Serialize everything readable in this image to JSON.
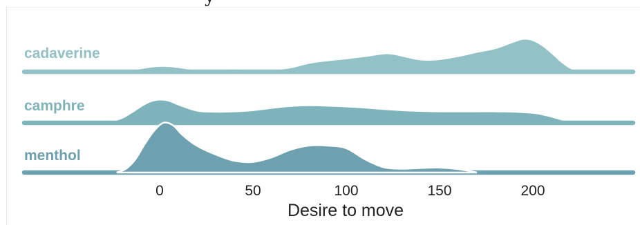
{
  "chart_data": {
    "type": "area",
    "subtype": "ridgeline",
    "title_fragment": "y",
    "xlabel": "Desire to move",
    "xticks": [
      0,
      50,
      100,
      150,
      200
    ],
    "xlim": [
      -73,
      254
    ],
    "grid": false,
    "legend": "none",
    "series": [
      {
        "name": "cadaverine",
        "color": "#92c2c6",
        "x": [
          -20,
          -15,
          -10,
          -5,
          0,
          5,
          10,
          20,
          30,
          40,
          50,
          60,
          70,
          80,
          90,
          100,
          110,
          120,
          125,
          130,
          140,
          150,
          160,
          170,
          180,
          190,
          195,
          200,
          205,
          210,
          215,
          220,
          225
        ],
        "density": [
          0.0,
          0.06,
          0.14,
          0.22,
          0.26,
          0.25,
          0.2,
          0.07,
          0.08,
          0.12,
          0.1,
          0.08,
          0.18,
          0.42,
          0.56,
          0.66,
          0.78,
          0.92,
          0.9,
          0.8,
          0.6,
          0.62,
          0.78,
          1.0,
          1.2,
          1.55,
          1.69,
          1.62,
          1.35,
          0.95,
          0.5,
          0.16,
          0.0
        ]
      },
      {
        "name": "camphre",
        "color": "#7fb3bc",
        "x": [
          -27,
          -20,
          -15,
          -10,
          -5,
          0,
          5,
          10,
          20,
          30,
          40,
          50,
          60,
          70,
          80,
          90,
          100,
          110,
          120,
          130,
          140,
          150,
          160,
          170,
          180,
          190,
          200,
          205,
          210,
          215,
          220
        ],
        "density": [
          0.0,
          0.22,
          0.5,
          0.82,
          1.08,
          1.18,
          1.12,
          0.92,
          0.6,
          0.54,
          0.56,
          0.62,
          0.74,
          0.84,
          0.88,
          0.86,
          0.82,
          0.76,
          0.68,
          0.62,
          0.58,
          0.56,
          0.56,
          0.56,
          0.56,
          0.54,
          0.48,
          0.4,
          0.28,
          0.14,
          0.0
        ]
      },
      {
        "name": "menthol",
        "color": "#6ea1b0",
        "x": [
          -23,
          -18,
          -13,
          -8,
          -3,
          2,
          7,
          12,
          17,
          22,
          30,
          40,
          50,
          60,
          70,
          80,
          90,
          100,
          110,
          120,
          130,
          140,
          150,
          160,
          170
        ],
        "density": [
          0.0,
          0.2,
          0.7,
          1.5,
          2.2,
          2.62,
          2.5,
          2.0,
          1.6,
          1.3,
          0.95,
          0.62,
          0.56,
          0.8,
          1.2,
          1.42,
          1.42,
          1.28,
          0.7,
          0.28,
          0.2,
          0.24,
          0.26,
          0.18,
          0.0
        ]
      }
    ]
  }
}
